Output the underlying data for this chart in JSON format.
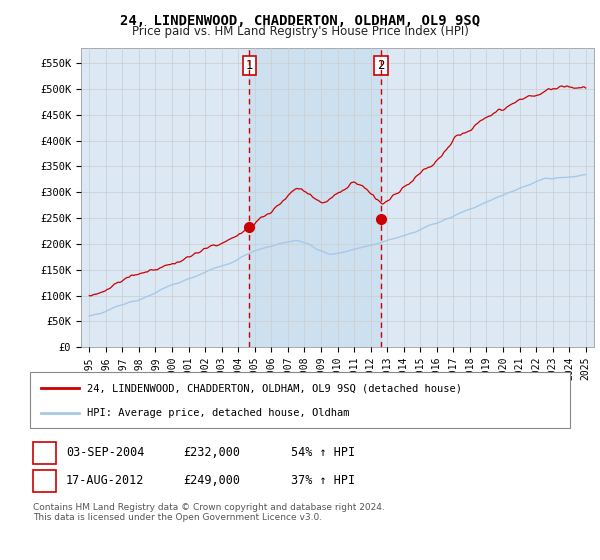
{
  "title": "24, LINDENWOOD, CHADDERTON, OLDHAM, OL9 9SQ",
  "subtitle": "Price paid vs. HM Land Registry's House Price Index (HPI)",
  "ylabel_ticks": [
    "£0",
    "£50K",
    "£100K",
    "£150K",
    "£200K",
    "£250K",
    "£300K",
    "£350K",
    "£400K",
    "£450K",
    "£500K",
    "£550K"
  ],
  "ytick_vals": [
    0,
    50000,
    100000,
    150000,
    200000,
    250000,
    300000,
    350000,
    400000,
    450000,
    500000,
    550000
  ],
  "ylim": [
    0,
    580000
  ],
  "xlim_start": 1994.5,
  "xlim_end": 2025.5,
  "sale1_x": 2004.67,
  "sale1_y": 232000,
  "sale2_x": 2012.62,
  "sale2_y": 249000,
  "sale1_label": "03-SEP-2004",
  "sale1_price": "£232,000",
  "sale1_hpi": "54% ↑ HPI",
  "sale2_label": "17-AUG-2012",
  "sale2_price": "£249,000",
  "sale2_hpi": "37% ↑ HPI",
  "legend_line1": "24, LINDENWOOD, CHADDERTON, OLDHAM, OL9 9SQ (detached house)",
  "legend_line2": "HPI: Average price, detached house, Oldham",
  "footer": "Contains HM Land Registry data © Crown copyright and database right 2024.\nThis data is licensed under the Open Government Licence v3.0.",
  "hpi_color": "#a8c8e8",
  "price_color": "#cc0000",
  "bg_color": "#dce9f5",
  "shade_color": "#ccdff0",
  "plot_bg": "#ffffff",
  "grid_color": "#cccccc"
}
